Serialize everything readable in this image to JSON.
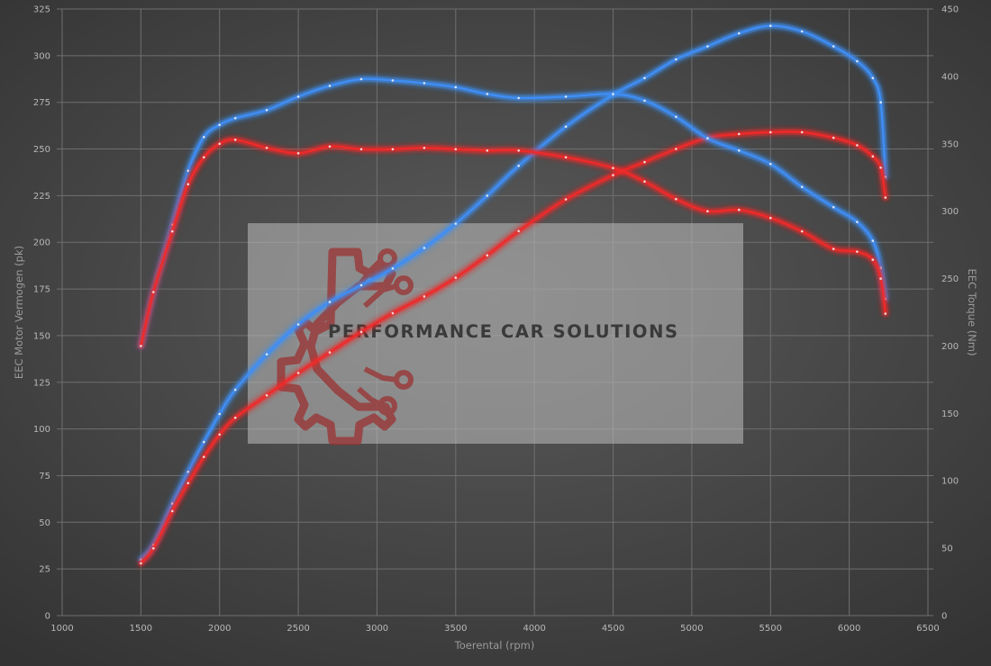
{
  "chart_data": {
    "type": "line",
    "title": "",
    "xlabel": "Toerental (rpm)",
    "ylabel": "EEC Motor Vermogen (pk)",
    "ylabel_right": "EEC Torque (Nm)",
    "xlim": [
      1000,
      6500
    ],
    "ylim": [
      0,
      325
    ],
    "ylim_right": [
      0,
      450
    ],
    "x_ticks": [
      1000,
      1500,
      2000,
      2500,
      3000,
      3500,
      4000,
      4500,
      5000,
      5500,
      6000,
      6500
    ],
    "y_ticks": [
      0,
      25,
      50,
      75,
      100,
      125,
      150,
      175,
      200,
      225,
      250,
      275,
      300,
      325
    ],
    "y_ticks_right": [
      0,
      50,
      100,
      150,
      200,
      250,
      300,
      350,
      400,
      450
    ],
    "grid": true,
    "legend": "none",
    "colors": {
      "tuned": "#3e8ef5",
      "stock": "#ee2a2a",
      "grid": "#6f6f6f",
      "text": "#b8b8b8"
    },
    "series": [
      {
        "axis": "left",
        "color": "#3e8ef5",
        "x": [
          1500,
          1580,
          1700,
          1800,
          1900,
          2000,
          2100,
          2300,
          2500,
          2700,
          2900,
          3100,
          3300,
          3500,
          3700,
          3900,
          4200,
          4500,
          4700,
          4900,
          5100,
          5300,
          5500,
          5700,
          5900,
          6050,
          6150,
          6200,
          6230
        ],
        "y": [
          30,
          38,
          60,
          77,
          93,
          108,
          121,
          140,
          156,
          168,
          177,
          186,
          197,
          210,
          225,
          241,
          262,
          279,
          288,
          298,
          305,
          312,
          316,
          313,
          305,
          297,
          288,
          275,
          235
        ]
      },
      {
        "axis": "left",
        "color": "#ee2a2a",
        "x": [
          1500,
          1580,
          1700,
          1800,
          1900,
          2000,
          2100,
          2300,
          2500,
          2700,
          2900,
          3100,
          3300,
          3500,
          3700,
          3900,
          4200,
          4500,
          4700,
          4900,
          5100,
          5300,
          5500,
          5700,
          5900,
          6050,
          6150,
          6200,
          6230
        ],
        "y": [
          28,
          36,
          56,
          71,
          85,
          97,
          106,
          118,
          130,
          141,
          152,
          162,
          171,
          181,
          193,
          206,
          223,
          236,
          243,
          250,
          256,
          258,
          259,
          259,
          256,
          252,
          246,
          240,
          224
        ]
      },
      {
        "axis": "right",
        "color": "#3e8ef5",
        "x": [
          1500,
          1580,
          1700,
          1800,
          1900,
          2000,
          2100,
          2300,
          2500,
          2700,
          2900,
          3100,
          3300,
          3500,
          3700,
          3900,
          4200,
          4500,
          4700,
          4900,
          5100,
          5300,
          5500,
          5700,
          5900,
          6050,
          6150,
          6200,
          6230
        ],
        "y": [
          200,
          240,
          290,
          330,
          355,
          364,
          369,
          375,
          385,
          393,
          398,
          397,
          395,
          392,
          387,
          384,
          385,
          387,
          382,
          370,
          354,
          345,
          335,
          318,
          303,
          292,
          278,
          258,
          235
        ]
      },
      {
        "axis": "right",
        "color": "#ee2a2a",
        "x": [
          1500,
          1580,
          1700,
          1800,
          1900,
          2000,
          2100,
          2300,
          2500,
          2700,
          2900,
          3100,
          3300,
          3500,
          3700,
          3900,
          4200,
          4500,
          4700,
          4900,
          5100,
          5300,
          5500,
          5700,
          5900,
          6050,
          6150,
          6200,
          6230
        ],
        "y": [
          200,
          240,
          285,
          320,
          340,
          350,
          353,
          347,
          343,
          348,
          346,
          346,
          347,
          346,
          345,
          345,
          340,
          332,
          322,
          309,
          300,
          301,
          295,
          285,
          272,
          270,
          264,
          250,
          224
        ]
      }
    ]
  },
  "watermark": {
    "text": "PERFORMANCE CAR SOLUTIONS"
  }
}
